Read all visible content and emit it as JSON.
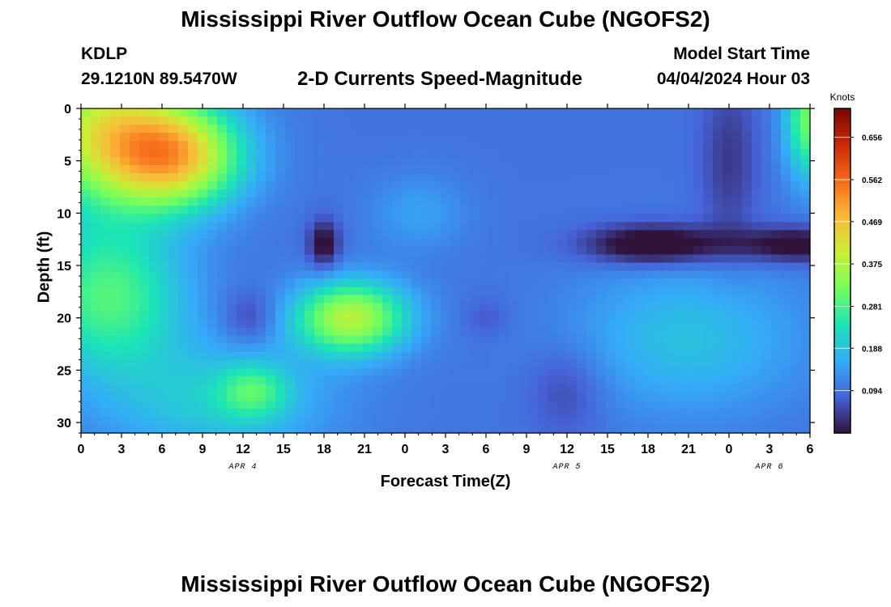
{
  "header": {
    "title": "Mississippi River Outflow Ocean Cube (NGOFS2)",
    "station": "KDLP",
    "coords": "29.1210N  89.5470W",
    "subtitle": "2-D Currents Speed-Magnitude",
    "model_start_label": "Model Start Time",
    "model_start_value": "04/04/2024 Hour 03"
  },
  "footer": {
    "title": "Mississippi River Outflow Ocean Cube (NGOFS2)"
  },
  "colors": {
    "background": "#ffffff",
    "colormap": [
      "#30123b",
      "#4662d7",
      "#35abf8",
      "#1ae4b6",
      "#72fe5e",
      "#c8ef34",
      "#faba39",
      "#f66b19",
      "#ca2a04",
      "#7a0403"
    ]
  },
  "chart_data": {
    "type": "heatmap",
    "xlabel": "Forecast Time(Z)",
    "ylabel": "Depth (ft)",
    "x_unit": "hours since 04/04/2024 00Z",
    "xlim": [
      0,
      54
    ],
    "ylim": [
      0,
      31
    ],
    "y_inverted": true,
    "x_ticks": [
      {
        "x": 0,
        "label": "0"
      },
      {
        "x": 3,
        "label": "3"
      },
      {
        "x": 6,
        "label": "6"
      },
      {
        "x": 9,
        "label": "9"
      },
      {
        "x": 12,
        "label": "12"
      },
      {
        "x": 15,
        "label": "15"
      },
      {
        "x": 18,
        "label": "18"
      },
      {
        "x": 21,
        "label": "21"
      },
      {
        "x": 24,
        "label": "0"
      },
      {
        "x": 27,
        "label": "3"
      },
      {
        "x": 30,
        "label": "6"
      },
      {
        "x": 33,
        "label": "9"
      },
      {
        "x": 36,
        "label": "12"
      },
      {
        "x": 39,
        "label": "15"
      },
      {
        "x": 42,
        "label": "18"
      },
      {
        "x": 45,
        "label": "21"
      },
      {
        "x": 48,
        "label": "0"
      },
      {
        "x": 51,
        "label": "3"
      },
      {
        "x": 54,
        "label": "6"
      }
    ],
    "y_ticks": [
      0,
      5,
      10,
      15,
      20,
      25,
      30
    ],
    "date_labels": [
      {
        "x": 12,
        "label": "APR 4"
      },
      {
        "x": 36,
        "label": "APR 5"
      },
      {
        "x": 51,
        "label": "APR 6"
      }
    ],
    "colorbar": {
      "label": "Knots",
      "min": 0.0,
      "max": 0.72,
      "ticks": [
        0.094,
        0.188,
        0.281,
        0.375,
        0.469,
        0.562,
        0.656
      ]
    },
    "features": [
      {
        "x": 1.5,
        "y": 2,
        "sx": 4,
        "sy": 5,
        "v": 0.27
      },
      {
        "x": 2,
        "y": 18,
        "sx": 4,
        "sy": 5,
        "v": 0.19
      },
      {
        "x": 20,
        "y": 20,
        "sx": 3,
        "sy": 2.5,
        "v": 0.28
      },
      {
        "x": 7,
        "y": 4.5,
        "sx": 3.5,
        "sy": 3.5,
        "v": 0.34
      },
      {
        "x": 12.8,
        "y": 27,
        "sx": 1.8,
        "sy": 1.8,
        "v": 0.12
      },
      {
        "x": 12.5,
        "y": 20,
        "sx": 1.4,
        "sy": 1.8,
        "v": -0.06
      },
      {
        "x": 18,
        "y": 13,
        "sx": 0.8,
        "sy": 1.6,
        "v": -0.12
      },
      {
        "x": 42.5,
        "y": 13,
        "sx": 3.5,
        "sy": 1.3,
        "v": -0.16
      },
      {
        "x": 53,
        "y": 13,
        "sx": 3,
        "sy": 1.2,
        "v": -0.13
      },
      {
        "x": 48,
        "y": 5,
        "sx": 1.5,
        "sy": 6,
        "v": -0.06
      },
      {
        "x": 36,
        "y": 27,
        "sx": 2,
        "sy": 3,
        "v": -0.05
      },
      {
        "x": 30,
        "y": 20,
        "sx": 1.2,
        "sy": 1.3,
        "v": -0.03
      },
      {
        "x": 45,
        "y": 22,
        "sx": 6,
        "sy": 5,
        "v": 0.09
      },
      {
        "x": 54,
        "y": 1,
        "sx": 1.3,
        "sy": 4,
        "v": 0.22
      },
      {
        "x": 10,
        "y": 28,
        "sx": 6,
        "sy": 4,
        "v": 0.1
      },
      {
        "x": 25,
        "y": 10,
        "sx": 2.5,
        "sy": 2.5,
        "v": 0.05
      }
    ],
    "base_value": 0.1,
    "grid": false
  }
}
